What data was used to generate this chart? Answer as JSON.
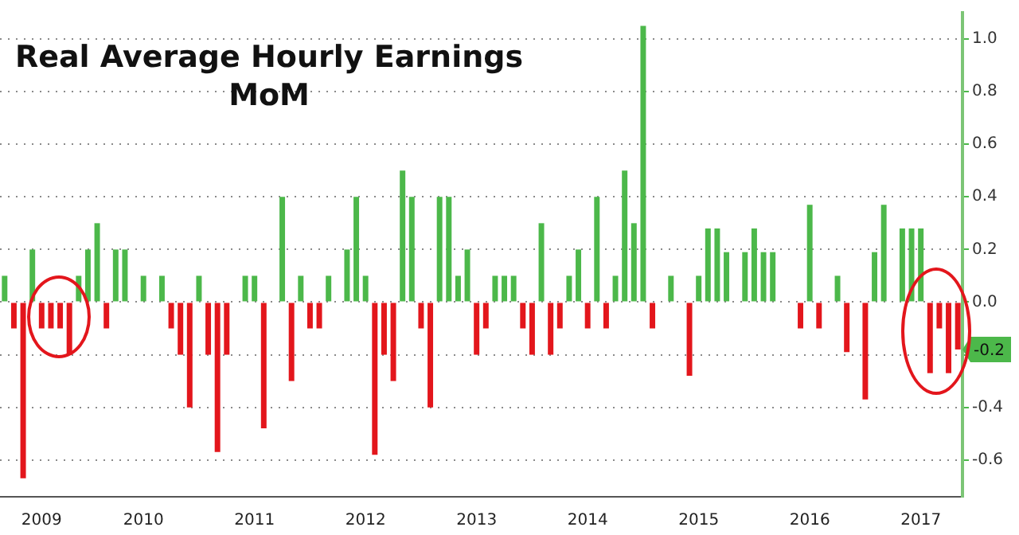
{
  "chart_data": {
    "type": "bar",
    "title": "Real Average Hourly Earnings MoM",
    "x": [
      "2009-04",
      "2009-05",
      "2009-06",
      "2009-07",
      "2009-08",
      "2009-09",
      "2009-10",
      "2009-11",
      "2009-12",
      "2010-01",
      "2010-02",
      "2010-03",
      "2010-04",
      "2010-05",
      "2010-06",
      "2010-07",
      "2010-08",
      "2010-09",
      "2010-10",
      "2010-11",
      "2010-12",
      "2011-01",
      "2011-02",
      "2011-03",
      "2011-04",
      "2011-05",
      "2011-06",
      "2011-07",
      "2011-08",
      "2011-09",
      "2011-10",
      "2011-11",
      "2011-12",
      "2012-01",
      "2012-02",
      "2012-03",
      "2012-04",
      "2012-05",
      "2012-06",
      "2012-07",
      "2012-08",
      "2012-09",
      "2012-10",
      "2012-11",
      "2012-12",
      "2013-01",
      "2013-02",
      "2013-03",
      "2013-04",
      "2013-05",
      "2013-06",
      "2013-07",
      "2013-08",
      "2013-09",
      "2013-10",
      "2013-11",
      "2013-12",
      "2014-01",
      "2014-02",
      "2014-03",
      "2014-04",
      "2014-05",
      "2014-06",
      "2014-07",
      "2014-08",
      "2014-09",
      "2014-10",
      "2014-11",
      "2014-12",
      "2015-01",
      "2015-02",
      "2015-03",
      "2015-04",
      "2015-05",
      "2015-06",
      "2015-07",
      "2015-08",
      "2015-09",
      "2015-10",
      "2015-11",
      "2015-12",
      "2016-01",
      "2016-02",
      "2016-03",
      "2016-04",
      "2016-05",
      "2016-06",
      "2016-07",
      "2016-08",
      "2016-09",
      "2016-10",
      "2016-11",
      "2016-12",
      "2017-01",
      "2017-02",
      "2017-03",
      "2017-04",
      "2017-05",
      "2017-06",
      "2017-07",
      "2017-08",
      "2017-09",
      "2017-10",
      "2017-11"
    ],
    "values": [
      0.1,
      -0.1,
      -0.67,
      0.2,
      -0.1,
      -0.1,
      -0.1,
      -0.2,
      0.1,
      0.2,
      0.3,
      -0.1,
      0.2,
      0.2,
      0,
      0.1,
      0,
      0.1,
      -0.1,
      -0.2,
      -0.4,
      0.1,
      -0.2,
      -0.57,
      -0.2,
      0,
      0.1,
      0.1,
      -0.48,
      0,
      0.4,
      -0.3,
      0.1,
      -0.1,
      -0.1,
      0.1,
      0,
      0.2,
      0.4,
      0.1,
      -0.58,
      -0.2,
      -0.3,
      0.5,
      0.4,
      -0.1,
      -0.4,
      0.4,
      0.4,
      0.1,
      0.2,
      -0.2,
      -0.1,
      0.1,
      0.1,
      0.1,
      -0.1,
      -0.2,
      0.3,
      -0.2,
      -0.1,
      0.1,
      0.2,
      -0.1,
      0.4,
      -0.1,
      0.1,
      0.5,
      0.3,
      1.05,
      -0.1,
      0,
      0.1,
      0,
      -0.28,
      0.1,
      0.28,
      0.28,
      0.19,
      0,
      0.19,
      0.28,
      0.19,
      0.19,
      0,
      0,
      -0.1,
      0.37,
      -0.1,
      0,
      0.1,
      -0.19,
      0,
      -0.37,
      0.19,
      0.37,
      0,
      0.28,
      0.28,
      0.28,
      -0.27,
      -0.1,
      -0.27,
      -0.18
    ],
    "colors": [
      "#4cb84a",
      "#e3161c",
      "#e3161c",
      "#4cb84a",
      "#e3161c",
      "#e3161c",
      "#e3161c",
      "#e3161c",
      "#4cb84a",
      "#4cb84a",
      "#4cb84a",
      "#e3161c",
      "#4cb84a",
      "#4cb84a",
      "#4cb84a",
      "#4cb84a",
      "#4cb84a",
      "#4cb84a",
      "#e3161c",
      "#e3161c",
      "#e3161c",
      "#4cb84a",
      "#e3161c",
      "#e3161c",
      "#e3161c",
      "#4cb84a",
      "#4cb84a",
      "#4cb84a",
      "#e3161c",
      "#4cb84a",
      "#4cb84a",
      "#e3161c",
      "#4cb84a",
      "#e3161c",
      "#e3161c",
      "#4cb84a",
      "#4cb84a",
      "#4cb84a",
      "#4cb84a",
      "#4cb84a",
      "#e3161c",
      "#e3161c",
      "#e3161c",
      "#4cb84a",
      "#4cb84a",
      "#e3161c",
      "#e3161c",
      "#4cb84a",
      "#4cb84a",
      "#4cb84a",
      "#4cb84a",
      "#e3161c",
      "#e3161c",
      "#4cb84a",
      "#4cb84a",
      "#4cb84a",
      "#e3161c",
      "#e3161c",
      "#4cb84a",
      "#e3161c",
      "#e3161c",
      "#4cb84a",
      "#4cb84a",
      "#e3161c",
      "#4cb84a",
      "#e3161c",
      "#4cb84a",
      "#4cb84a",
      "#4cb84a",
      "#4cb84a",
      "#e3161c",
      "#4cb84a",
      "#4cb84a",
      "#4cb84a",
      "#e3161c",
      "#4cb84a",
      "#4cb84a",
      "#4cb84a",
      "#4cb84a",
      "#4cb84a",
      "#4cb84a",
      "#4cb84a",
      "#4cb84a",
      "#4cb84a",
      "#4cb84a",
      "#4cb84a",
      "#e3161c",
      "#4cb84a",
      "#e3161c",
      "#4cb84a",
      "#4cb84a",
      "#e3161c",
      "#4cb84a",
      "#e3161c",
      "#4cb84a",
      "#4cb84a",
      "#4cb84a",
      "#4cb84a",
      "#4cb84a",
      "#4cb84a",
      "#e3161c",
      "#e3161c",
      "#e3161c",
      "#e3161c"
    ],
    "xlim": [
      "2009-03-16",
      "2017-11-16"
    ],
    "xticks": [
      {
        "value": "2009-08",
        "label": "2009"
      },
      {
        "value": "2010-07",
        "label": "2010"
      },
      {
        "value": "2011-07",
        "label": "2011"
      },
      {
        "value": "2012-07",
        "label": "2012"
      },
      {
        "value": "2013-07",
        "label": "2013"
      },
      {
        "value": "2014-07",
        "label": "2014"
      },
      {
        "value": "2015-07",
        "label": "2015"
      },
      {
        "value": "2016-07",
        "label": "2016"
      },
      {
        "value": "2017-07",
        "label": "2017"
      }
    ],
    "ylim": [
      -0.74,
      1.1
    ],
    "yticks": [
      {
        "value": -0.6,
        "label": "-0.6"
      },
      {
        "value": -0.4,
        "label": "-0.4"
      },
      {
        "value": -0.2,
        "label": null
      },
      {
        "value": 0,
        "label": "0.0"
      },
      {
        "value": 0.2,
        "label": "0.2"
      },
      {
        "value": 0.4,
        "label": "0.4"
      },
      {
        "value": 0.6,
        "label": "0.6"
      },
      {
        "value": 0.8,
        "label": "0.8"
      },
      {
        "value": 1,
        "label": "1.0"
      }
    ],
    "annotations": [
      {
        "text": "-0.2",
        "y": -0.18
      }
    ],
    "grid": true,
    "legend": false
  }
}
